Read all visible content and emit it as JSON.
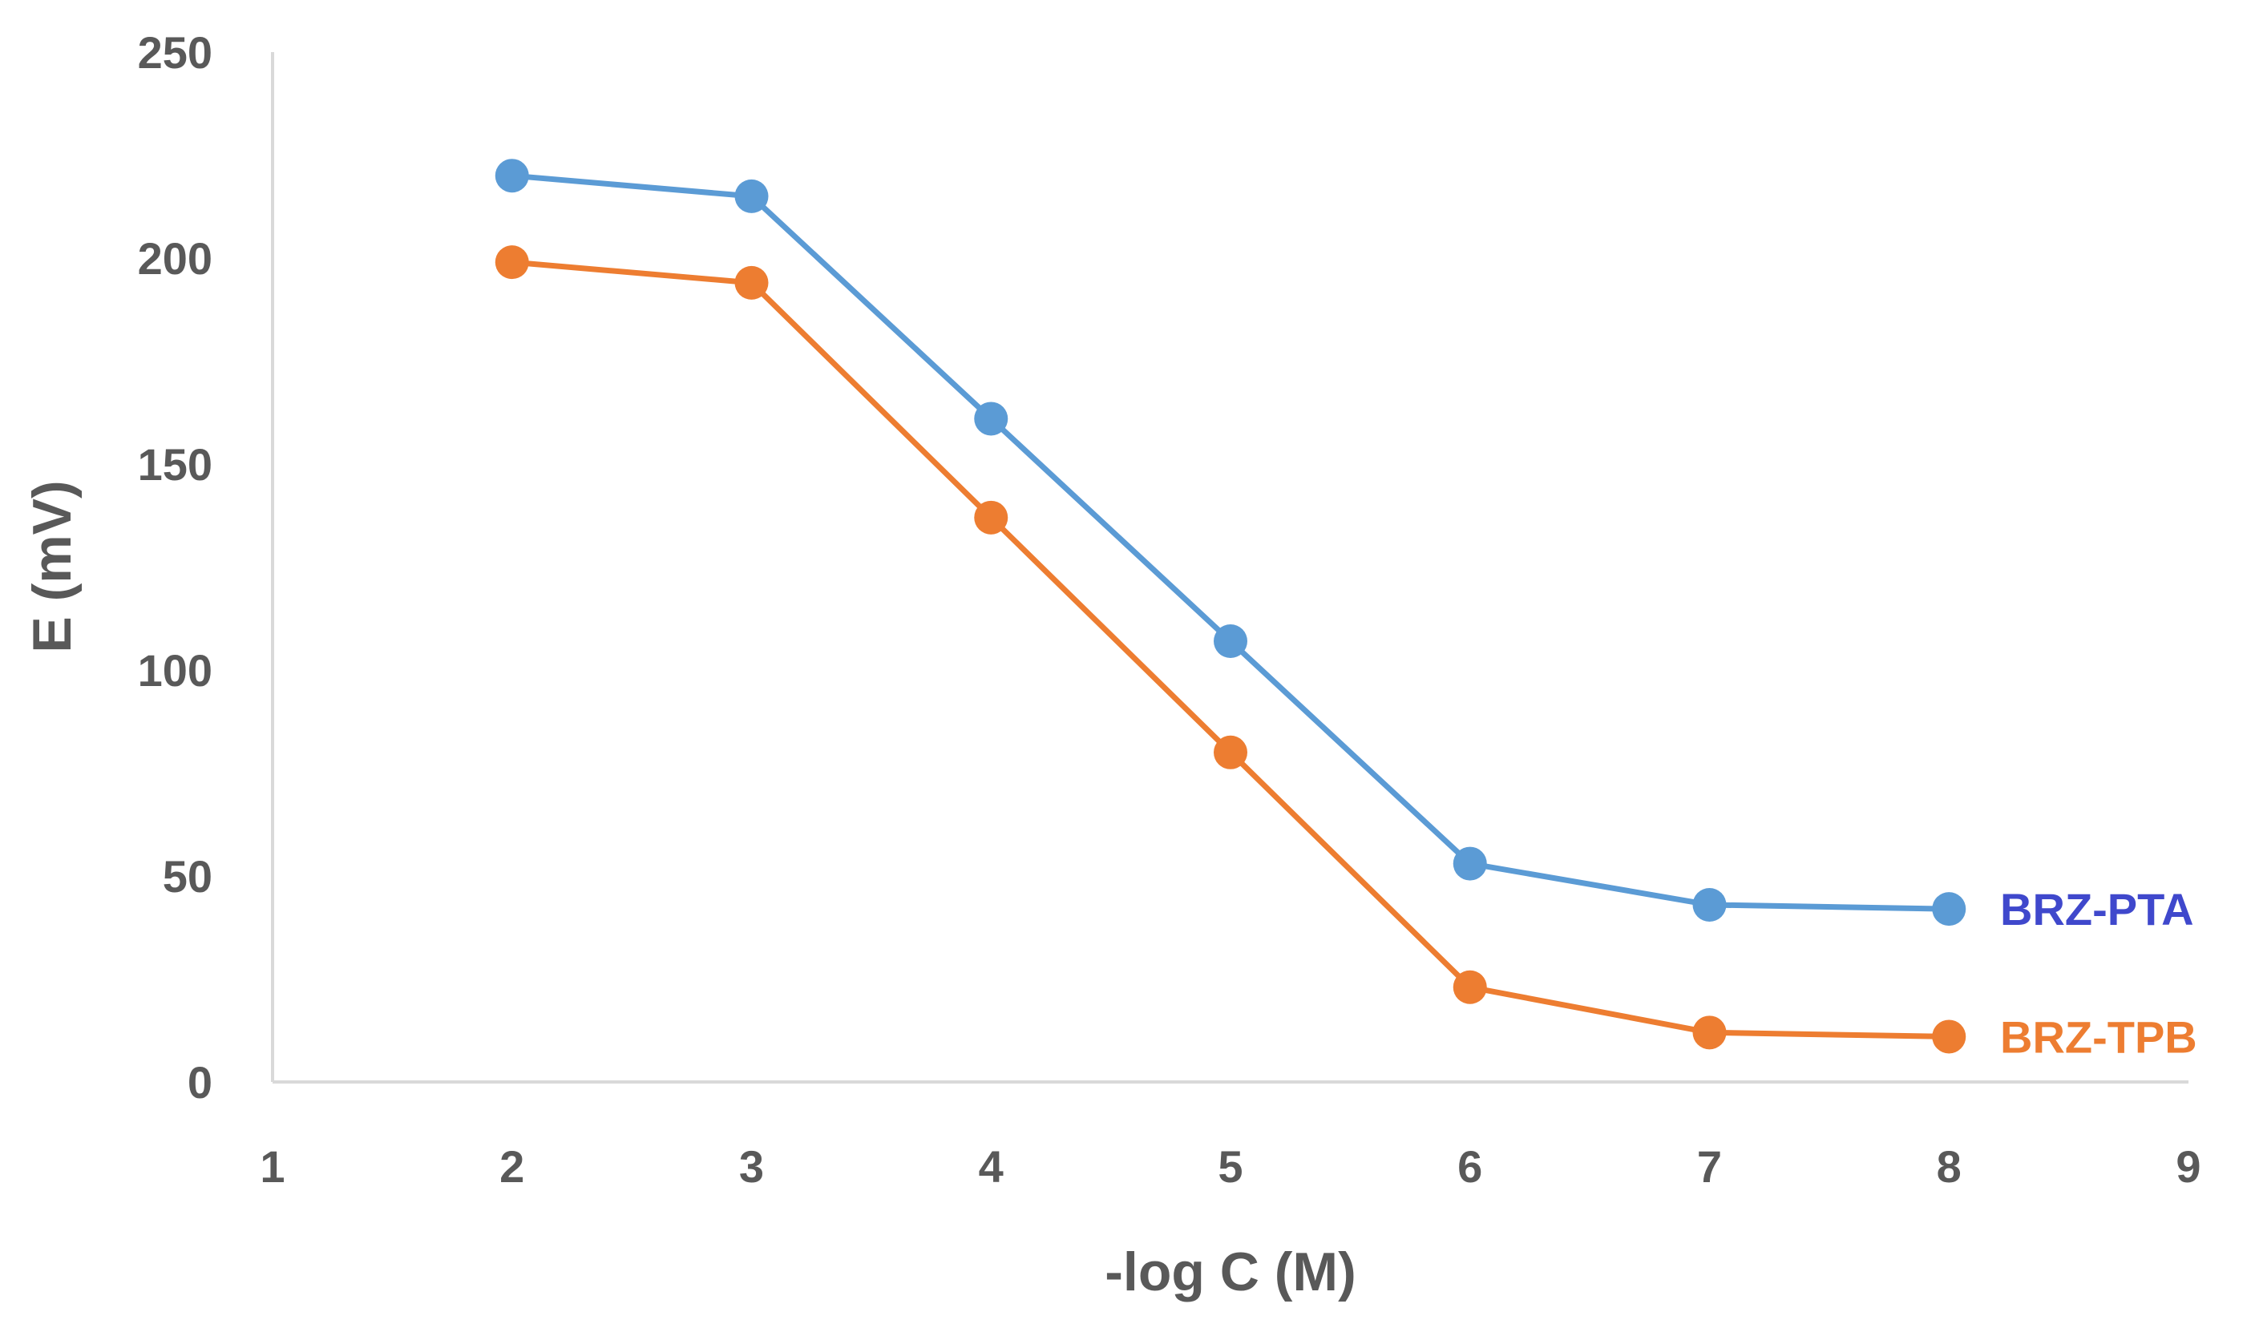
{
  "chart_data": {
    "type": "line",
    "title": "",
    "xlabel": "-log C (M)",
    "ylabel": "E (mV)",
    "xlim": [
      1,
      9
    ],
    "ylim": [
      0,
      250
    ],
    "xticks": [
      1,
      2,
      3,
      4,
      5,
      6,
      7,
      8,
      9
    ],
    "yticks": [
      0,
      50,
      100,
      150,
      200,
      250
    ],
    "grid": false,
    "legend": "inline-right",
    "x": [
      2,
      3,
      4,
      5,
      6,
      7,
      8
    ],
    "series": [
      {
        "name": "BRZ-PTA",
        "values": [
          220,
          215,
          161,
          107,
          53,
          43,
          42
        ],
        "color": "#5B9BD5",
        "label_color": "#3F48CC"
      },
      {
        "name": "BRZ-TPB",
        "values": [
          199,
          194,
          137,
          80,
          23,
          12,
          11
        ],
        "color": "#ED7D31",
        "label_color": "#ED7D31"
      }
    ]
  }
}
